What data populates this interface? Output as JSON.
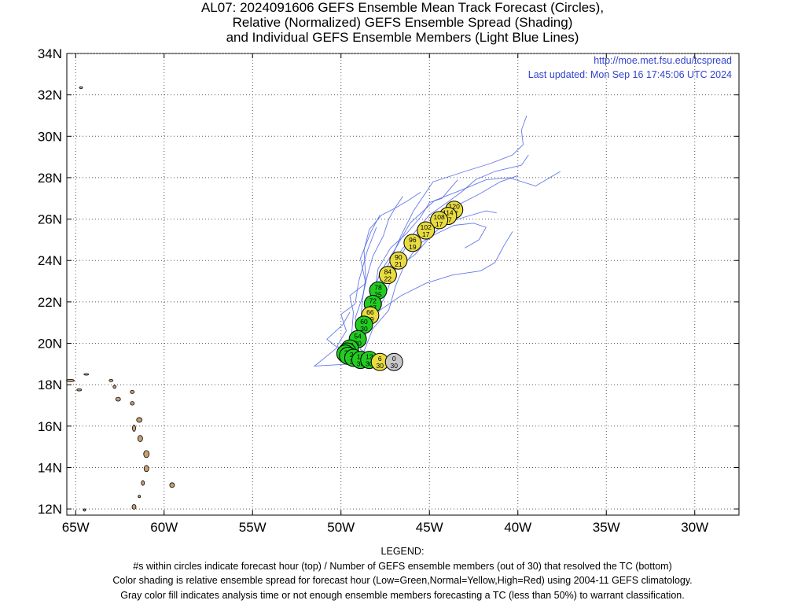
{
  "title_lines": [
    "AL07: 2024091606 GEFS Ensemble Mean Track Forecast (Circles),",
    "Relative (Normalized) GEFS Ensemble Spread (Shading)",
    "and Individual GEFS Ensemble Members (Light Blue Lines)"
  ],
  "source_url": "http://moe.met.fsu.edu/tcspread",
  "last_updated": "Last updated: Mon Sep 16 17:45:06 UTC 2024",
  "lat_labels": [
    "12N",
    "14N",
    "16N",
    "18N",
    "20N",
    "22N",
    "24N",
    "26N",
    "28N",
    "30N",
    "32N",
    "34N"
  ],
  "lon_labels": [
    "65W",
    "60W",
    "55W",
    "50W",
    "45W",
    "40W",
    "35W",
    "30W"
  ],
  "legend_lines": [
    "LEGEND:",
    "#s within circles indicate forecast hour (top) / Number of GEFS ensemble members (out of 30) that resolved the TC (bottom)",
    "Color shading is relative ensemble spread for forecast hour (Low=Green,Normal=Yellow,High=Red) using 2004-11 GEFS climatology.",
    "Gray color fill indicates analysis time or not enough ensemble members forecasting a TC (less than 50%) to warrant classification."
  ],
  "colors": {
    "low": "#22cc22",
    "normal": "#e8dc40",
    "high": "#ee2222",
    "gray": "#c8c8c8",
    "members": "#4a62e8",
    "land": "#c8a072",
    "grid": "#555555",
    "meta_text": "#3344cc"
  },
  "chart_data": {
    "type": "map",
    "extent": {
      "lon_w": -65.5,
      "lon_e": -27.5,
      "lat_s": 11.7,
      "lat_n": 34
    },
    "grid": true,
    "track": [
      {
        "hour": "0",
        "members": "30",
        "spread": "gray",
        "lat": 19.1,
        "lon": -47.0
      },
      {
        "hour": "6",
        "members": "30",
        "spread": "normal",
        "lat": 19.1,
        "lon": -47.8
      },
      {
        "hour": "12",
        "members": "30",
        "spread": "low",
        "lat": 19.2,
        "lon": -48.4
      },
      {
        "hour": "18",
        "members": "30",
        "spread": "low",
        "lat": 19.2,
        "lon": -48.9
      },
      {
        "hour": "24",
        "members": "30",
        "spread": "low",
        "lat": 19.3,
        "lon": -49.3
      },
      {
        "hour": "30",
        "members": "30",
        "spread": "low",
        "lat": 19.4,
        "lon": -49.6
      },
      {
        "hour": "36",
        "members": "30",
        "spread": "low",
        "lat": 19.5,
        "lon": -49.75
      },
      {
        "hour": "42",
        "members": "30",
        "spread": "low",
        "lat": 19.6,
        "lon": -49.65
      },
      {
        "hour": "48",
        "members": "30",
        "spread": "low",
        "lat": 19.75,
        "lon": -49.5
      },
      {
        "hour": "54",
        "members": "30",
        "spread": "low",
        "lat": 20.2,
        "lon": -49.05
      },
      {
        "hour": "60",
        "members": "30",
        "spread": "low",
        "lat": 20.9,
        "lon": -48.7
      },
      {
        "hour": "66",
        "members": "29",
        "spread": "normal",
        "lat": 21.35,
        "lon": -48.35
      },
      {
        "hour": "72",
        "members": "27",
        "spread": "low",
        "lat": 21.9,
        "lon": -48.2
      },
      {
        "hour": "78",
        "members": "25",
        "spread": "low",
        "lat": 22.55,
        "lon": -47.9
      },
      {
        "hour": "84",
        "members": "22",
        "spread": "normal",
        "lat": 23.3,
        "lon": -47.35
      },
      {
        "hour": "90",
        "members": "21",
        "spread": "normal",
        "lat": 24.0,
        "lon": -46.75
      },
      {
        "hour": "96",
        "members": "19",
        "spread": "normal",
        "lat": 24.85,
        "lon": -45.95
      },
      {
        "hour": "102",
        "members": "17",
        "spread": "normal",
        "lat": 25.45,
        "lon": -45.2
      },
      {
        "hour": "108",
        "members": "17",
        "spread": "normal",
        "lat": 25.95,
        "lon": -44.45
      },
      {
        "hour": "114",
        "members": "17",
        "spread": "normal",
        "lat": 26.15,
        "lon": -43.95
      },
      {
        "hour": "120",
        "members": "17",
        "spread": "normal",
        "lat": 26.45,
        "lon": -43.6
      }
    ]
  }
}
